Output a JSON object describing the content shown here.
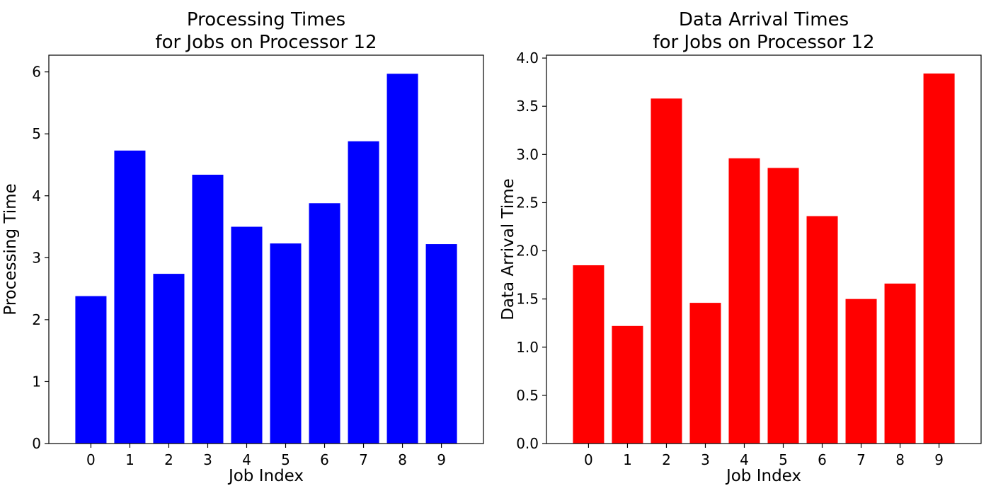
{
  "chart_data": [
    {
      "type": "bar",
      "title_lines": [
        "Processing Times",
        "for Jobs on Processor 12"
      ],
      "xlabel": "Job Index",
      "ylabel": "Processing Time",
      "categories": [
        "0",
        "1",
        "2",
        "3",
        "4",
        "5",
        "6",
        "7",
        "8",
        "9"
      ],
      "values": [
        2.38,
        4.73,
        2.74,
        4.34,
        3.5,
        3.23,
        3.88,
        4.88,
        5.97,
        3.22
      ],
      "ylim": [
        0,
        6.27
      ],
      "yticks": [
        0,
        1,
        2,
        3,
        4,
        5,
        6
      ],
      "ytick_labels": [
        "0",
        "1",
        "2",
        "3",
        "4",
        "5",
        "6"
      ],
      "bar_color": "#0000ff",
      "grid": false,
      "legend": false
    },
    {
      "type": "bar",
      "title_lines": [
        "Data Arrival Times",
        "for Jobs on Processor 12"
      ],
      "xlabel": "Job Index",
      "ylabel": "Data Arrival Time",
      "categories": [
        "0",
        "1",
        "2",
        "3",
        "4",
        "5",
        "6",
        "7",
        "8",
        "9"
      ],
      "values": [
        1.85,
        1.22,
        3.58,
        1.46,
        2.96,
        2.86,
        2.36,
        1.5,
        1.66,
        3.84
      ],
      "ylim": [
        0,
        4.03
      ],
      "yticks": [
        0,
        0.5,
        1,
        1.5,
        2,
        2.5,
        3,
        3.5,
        4
      ],
      "ytick_labels": [
        "0.0",
        "0.5",
        "1.0",
        "1.5",
        "2.0",
        "2.5",
        "3.0",
        "3.5",
        "4.0"
      ],
      "bar_color": "#ff0000",
      "grid": false,
      "legend": false
    }
  ]
}
